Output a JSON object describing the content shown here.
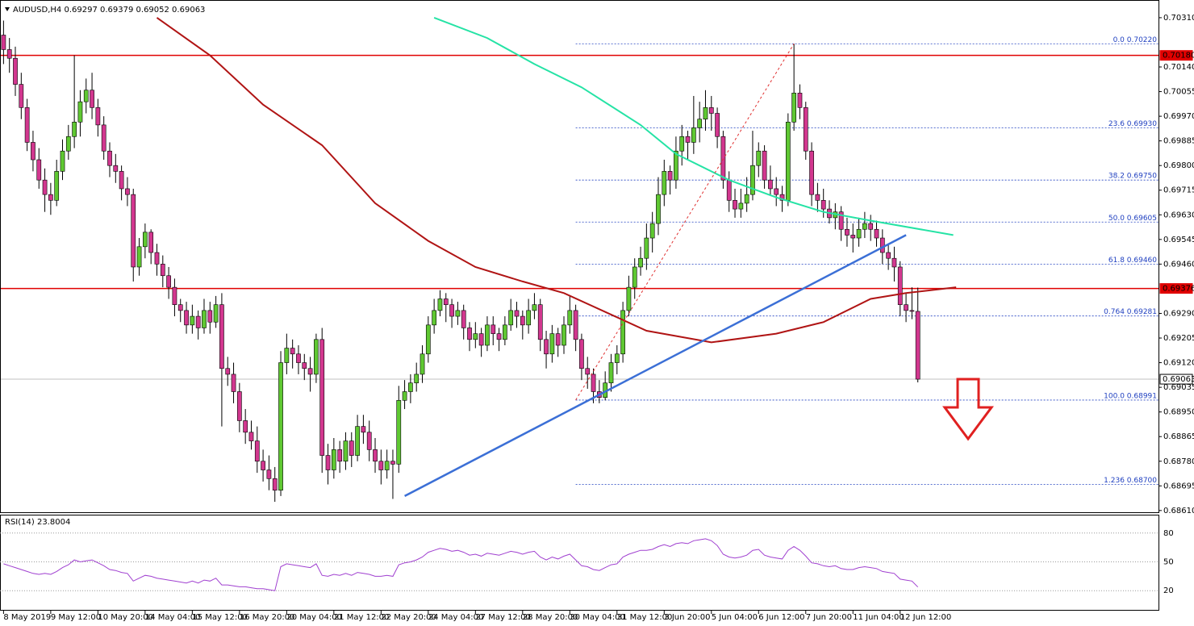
{
  "chart_data": [
    {
      "type": "candlestick",
      "title": "AUDUSD,H4 0.69297 0.69379 0.69052 0.69063",
      "up_color": "#5fc832",
      "down_color": "#d2378f",
      "xlim": [
        -0.6,
        195.8
      ],
      "ylim": [
        0.68604,
        0.70371
      ],
      "yticks": [
        {
          "value": 0.7031,
          "label": "0.70310"
        },
        {
          "value": 0.7014,
          "label": "0.70140"
        },
        {
          "value": 0.70055,
          "label": "0.70055"
        },
        {
          "value": 0.6997,
          "label": "0.69970"
        },
        {
          "value": 0.69885,
          "label": "0.69885"
        },
        {
          "value": 0.698,
          "label": "0.69800"
        },
        {
          "value": 0.69715,
          "label": "0.69715"
        },
        {
          "value": 0.6963,
          "label": "0.69630"
        },
        {
          "value": 0.69545,
          "label": "0.69545"
        },
        {
          "value": 0.6946,
          "label": "0.69460"
        },
        {
          "value": 0.6929,
          "label": "0.69290"
        },
        {
          "value": 0.69205,
          "label": "0.69205"
        },
        {
          "value": 0.6912,
          "label": "0.69120"
        },
        {
          "value": 0.69035,
          "label": "0.69035"
        },
        {
          "value": 0.6895,
          "label": "0.68950"
        },
        {
          "value": 0.68865,
          "label": "0.68865"
        },
        {
          "value": 0.6878,
          "label": "0.68780"
        },
        {
          "value": 0.68695,
          "label": "0.68695"
        },
        {
          "value": 0.6861,
          "label": "0.68610"
        }
      ],
      "xticks": [
        {
          "value": 0,
          "label": "8 May 2019"
        },
        {
          "value": 8,
          "label": "9 May 12:00"
        },
        {
          "value": 16,
          "label": "10 May 20:00"
        },
        {
          "value": 24,
          "label": "14 May 04:00"
        },
        {
          "value": 32,
          "label": "15 May 12:00"
        },
        {
          "value": 40,
          "label": "16 May 20:00"
        },
        {
          "value": 48,
          "label": "20 May 04:00"
        },
        {
          "value": 56,
          "label": "21 May 12:00"
        },
        {
          "value": 64,
          "label": "22 May 20:00"
        },
        {
          "value": 72,
          "label": "24 May 04:00"
        },
        {
          "value": 80,
          "label": "27 May 12:00"
        },
        {
          "value": 88,
          "label": "28 May 20:00"
        },
        {
          "value": 96,
          "label": "30 May 04:00"
        },
        {
          "value": 104,
          "label": "31 May 12:00"
        },
        {
          "value": 112,
          "label": "3 Jun 20:00"
        },
        {
          "value": 120,
          "label": "5 Jun 04:00"
        },
        {
          "value": 128,
          "label": "6 Jun 12:00"
        },
        {
          "value": 136,
          "label": "7 Jun 20:00"
        },
        {
          "value": 144,
          "label": "11 Jun 04:00"
        },
        {
          "value": 152,
          "label": "12 Jun 12:00"
        }
      ],
      "open": [
        0.7025,
        0.702,
        0.7017,
        0.7008,
        0.7,
        0.6988,
        0.6982,
        0.6975,
        0.697,
        0.6968,
        0.6978,
        0.6985,
        0.699,
        0.6995,
        0.7002,
        0.7006,
        0.7,
        0.6994,
        0.6985,
        0.698,
        0.6978,
        0.6972,
        0.697,
        0.6945,
        0.6952,
        0.6957,
        0.695,
        0.6946,
        0.6942,
        0.6938,
        0.6932,
        0.693,
        0.6925,
        0.6928,
        0.6924,
        0.693,
        0.6926,
        0.6932,
        0.691,
        0.6908,
        0.6902,
        0.6892,
        0.6888,
        0.6885,
        0.6878,
        0.6875,
        0.6872,
        0.6868,
        0.6912,
        0.6917,
        0.6915,
        0.6912,
        0.691,
        0.6908,
        0.692,
        0.688,
        0.6875,
        0.6882,
        0.6878,
        0.6885,
        0.688,
        0.689,
        0.6888,
        0.6882,
        0.6878,
        0.6875,
        0.6878,
        0.6877,
        0.6899,
        0.6902,
        0.6905,
        0.6908,
        0.6915,
        0.6925,
        0.693,
        0.6934,
        0.6932,
        0.6928,
        0.693,
        0.6924,
        0.692,
        0.6922,
        0.6918,
        0.6925,
        0.6922,
        0.692,
        0.6925,
        0.693,
        0.6928,
        0.6925,
        0.693,
        0.6932,
        0.692,
        0.6915,
        0.6922,
        0.6918,
        0.6925,
        0.693,
        0.692,
        0.691,
        0.6908,
        0.6902,
        0.69,
        0.6905,
        0.6912,
        0.6915,
        0.693,
        0.6938,
        0.6945,
        0.6948,
        0.6955,
        0.696,
        0.697,
        0.6978,
        0.6975,
        0.6985,
        0.699,
        0.6988,
        0.6993,
        0.6996,
        0.7,
        0.6998,
        0.699,
        0.6975,
        0.6968,
        0.6965,
        0.6967,
        0.697,
        0.698,
        0.6985,
        0.6975,
        0.6972,
        0.697,
        0.6968,
        0.6995,
        0.7005,
        0.7,
        0.6985,
        0.697,
        0.6968,
        0.6965,
        0.6962,
        0.6964,
        0.6958,
        0.6956,
        0.6955,
        0.6958,
        0.696,
        0.6958,
        0.6955,
        0.695,
        0.6948,
        0.6945,
        0.6932,
        0.693,
        0.69297
      ],
      "high": [
        0.703,
        0.7024,
        0.7021,
        0.7012,
        0.7003,
        0.6992,
        0.6986,
        0.6979,
        0.6974,
        0.6982,
        0.6989,
        0.6994,
        0.7018,
        0.7006,
        0.701,
        0.7012,
        0.7003,
        0.6997,
        0.6988,
        0.6984,
        0.698,
        0.6976,
        0.6972,
        0.6955,
        0.696,
        0.6958,
        0.6953,
        0.6949,
        0.6945,
        0.6941,
        0.6934,
        0.6933,
        0.6932,
        0.693,
        0.6934,
        0.6933,
        0.6935,
        0.6936,
        0.6914,
        0.6912,
        0.6905,
        0.6896,
        0.6892,
        0.689,
        0.6882,
        0.688,
        0.6876,
        0.6916,
        0.6922,
        0.692,
        0.6918,
        0.6915,
        0.6914,
        0.6922,
        0.6924,
        0.6884,
        0.6886,
        0.6885,
        0.6888,
        0.6888,
        0.6894,
        0.6894,
        0.6892,
        0.6886,
        0.6882,
        0.6882,
        0.6882,
        0.6904,
        0.6906,
        0.6908,
        0.6912,
        0.6918,
        0.6928,
        0.6934,
        0.6937,
        0.6936,
        0.6934,
        0.6933,
        0.6932,
        0.6926,
        0.6926,
        0.6924,
        0.6928,
        0.6928,
        0.6924,
        0.6928,
        0.6934,
        0.6933,
        0.693,
        0.6934,
        0.6936,
        0.6934,
        0.6923,
        0.6925,
        0.6924,
        0.6928,
        0.6935,
        0.6932,
        0.6922,
        0.6914,
        0.691,
        0.6906,
        0.6909,
        0.6915,
        0.6918,
        0.6933,
        0.6942,
        0.6948,
        0.6952,
        0.696,
        0.6964,
        0.6976,
        0.6982,
        0.698,
        0.699,
        0.6994,
        0.6992,
        0.7004,
        0.7002,
        0.7006,
        0.7004,
        0.7,
        0.6992,
        0.6978,
        0.6972,
        0.6972,
        0.6976,
        0.6992,
        0.6988,
        0.6987,
        0.698,
        0.6976,
        0.6973,
        0.6998,
        0.7022,
        0.7008,
        0.7002,
        0.6988,
        0.6974,
        0.6972,
        0.6968,
        0.6967,
        0.6966,
        0.6962,
        0.696,
        0.6962,
        0.6964,
        0.6963,
        0.6961,
        0.6958,
        0.6953,
        0.6952,
        0.6947,
        0.6936,
        0.6938,
        0.69379
      ],
      "low": [
        0.7015,
        0.7012,
        0.7004,
        0.6996,
        0.6985,
        0.6978,
        0.6972,
        0.6964,
        0.6963,
        0.6966,
        0.6975,
        0.6982,
        0.6986,
        0.699,
        0.6998,
        0.6996,
        0.699,
        0.6982,
        0.6976,
        0.6974,
        0.6968,
        0.6966,
        0.694,
        0.6942,
        0.6948,
        0.6946,
        0.6942,
        0.6938,
        0.6934,
        0.6928,
        0.6926,
        0.6922,
        0.6922,
        0.692,
        0.6922,
        0.6922,
        0.6924,
        0.689,
        0.6904,
        0.6898,
        0.6888,
        0.6884,
        0.6882,
        0.6874,
        0.6871,
        0.6868,
        0.6864,
        0.6866,
        0.6908,
        0.691,
        0.6908,
        0.6906,
        0.6902,
        0.6905,
        0.6874,
        0.687,
        0.6872,
        0.6874,
        0.6875,
        0.6876,
        0.6878,
        0.6884,
        0.6878,
        0.6874,
        0.687,
        0.6872,
        0.6865,
        0.6874,
        0.6896,
        0.6898,
        0.6902,
        0.6905,
        0.6912,
        0.6922,
        0.6928,
        0.6926,
        0.6924,
        0.6925,
        0.692,
        0.6916,
        0.6917,
        0.6914,
        0.6916,
        0.6918,
        0.6916,
        0.6918,
        0.6923,
        0.6924,
        0.692,
        0.6922,
        0.6927,
        0.6916,
        0.691,
        0.6912,
        0.6914,
        0.6915,
        0.6922,
        0.6916,
        0.6906,
        0.6903,
        0.6898,
        0.6898,
        0.6899,
        0.6902,
        0.6908,
        0.6912,
        0.6928,
        0.6934,
        0.6942,
        0.6944,
        0.695,
        0.6956,
        0.6966,
        0.697,
        0.6972,
        0.698,
        0.6982,
        0.6984,
        0.6988,
        0.6992,
        0.6992,
        0.6986,
        0.6972,
        0.6964,
        0.6962,
        0.6962,
        0.6964,
        0.6968,
        0.6976,
        0.6972,
        0.697,
        0.6966,
        0.6964,
        0.6966,
        0.6992,
        0.6996,
        0.6982,
        0.6966,
        0.6964,
        0.6962,
        0.696,
        0.6958,
        0.6954,
        0.6952,
        0.695,
        0.6952,
        0.6955,
        0.6954,
        0.6952,
        0.6946,
        0.6944,
        0.694,
        0.6928,
        0.6926,
        0.6927,
        0.69052
      ],
      "close": [
        0.702,
        0.7017,
        0.7008,
        0.7,
        0.6988,
        0.6982,
        0.6975,
        0.697,
        0.6968,
        0.6978,
        0.6985,
        0.699,
        0.6995,
        0.7002,
        0.7006,
        0.7,
        0.6994,
        0.6985,
        0.698,
        0.6978,
        0.6972,
        0.697,
        0.6945,
        0.6952,
        0.6957,
        0.695,
        0.6946,
        0.6942,
        0.6938,
        0.6932,
        0.693,
        0.6925,
        0.6928,
        0.6924,
        0.693,
        0.6926,
        0.6932,
        0.691,
        0.6908,
        0.6902,
        0.6892,
        0.6888,
        0.6885,
        0.6878,
        0.6875,
        0.6872,
        0.6868,
        0.6912,
        0.6917,
        0.6915,
        0.6912,
        0.691,
        0.6908,
        0.692,
        0.688,
        0.6875,
        0.6882,
        0.6878,
        0.6885,
        0.688,
        0.689,
        0.6888,
        0.6882,
        0.6878,
        0.6875,
        0.6878,
        0.6877,
        0.6899,
        0.6902,
        0.6905,
        0.6908,
        0.6915,
        0.6925,
        0.693,
        0.6934,
        0.6932,
        0.6928,
        0.693,
        0.6924,
        0.692,
        0.6922,
        0.6918,
        0.6925,
        0.6922,
        0.692,
        0.6925,
        0.693,
        0.6928,
        0.6925,
        0.693,
        0.6932,
        0.692,
        0.6915,
        0.6922,
        0.6918,
        0.6925,
        0.693,
        0.692,
        0.691,
        0.6908,
        0.6902,
        0.69,
        0.6905,
        0.6912,
        0.6915,
        0.693,
        0.6938,
        0.6945,
        0.6948,
        0.6955,
        0.696,
        0.697,
        0.6978,
        0.6975,
        0.6985,
        0.699,
        0.6988,
        0.6993,
        0.6996,
        0.7,
        0.6998,
        0.699,
        0.6975,
        0.6968,
        0.6965,
        0.6967,
        0.697,
        0.698,
        0.6985,
        0.6975,
        0.6972,
        0.697,
        0.6968,
        0.6995,
        0.7005,
        0.7,
        0.6985,
        0.697,
        0.6968,
        0.6965,
        0.6962,
        0.6964,
        0.6958,
        0.6956,
        0.6955,
        0.6958,
        0.696,
        0.6958,
        0.6955,
        0.695,
        0.6948,
        0.6945,
        0.6932,
        0.693,
        0.69297,
        0.69063
      ],
      "levels": [
        {
          "value": 0.7018,
          "label": "0.70180",
          "color": "#e00000"
        },
        {
          "value": 0.69376,
          "label": "0.69376",
          "color": "#e00000"
        },
        {
          "value": 0.69063,
          "label": "0.69063",
          "color": "#c0c0c0"
        }
      ],
      "fibonacci": {
        "x_start": 97,
        "color": "#2040c0",
        "levels": [
          {
            "value": 0.7022,
            "label": "0.0 0.70220"
          },
          {
            "value": 0.6993,
            "label": "23.6 0.69930"
          },
          {
            "value": 0.6975,
            "label": "38.2 0.69750"
          },
          {
            "value": 0.69605,
            "label": "50.0 0.69605"
          },
          {
            "value": 0.6946,
            "label": "61.8 0.69460"
          },
          {
            "value": 0.69281,
            "label": "0.764 0.69281"
          },
          {
            "value": 0.68991,
            "label": "100.0 0.68991"
          },
          {
            "value": 0.687,
            "label": "1.236 0.68700"
          }
        ]
      },
      "overlays": [
        {
          "color": "#b01414",
          "width": 2,
          "x": [
            26,
            35,
            44,
            54,
            63,
            72,
            80,
            88,
            95,
            109,
            120,
            131,
            139,
            147,
            153,
            161.5
          ],
          "values": [
            0.7031,
            0.7018,
            0.7001,
            0.6987,
            0.6967,
            0.6954,
            0.6945,
            0.694,
            0.6936,
            0.6923,
            0.6919,
            0.6922,
            0.6926,
            0.6934,
            0.6936,
            0.6938
          ]
        },
        {
          "color": "#25e3a5",
          "width": 2,
          "x": [
            73,
            82,
            90,
            98,
            108,
            114,
            123,
            131,
            139,
            147,
            161
          ],
          "values": [
            0.7031,
            0.7024,
            0.7015,
            0.7007,
            0.6994,
            0.6984,
            0.6975,
            0.6969,
            0.6964,
            0.6961,
            0.6956
          ]
        },
        {
          "color": "#3b6fd6",
          "width": 2.5,
          "x": [
            68,
            153
          ],
          "values": [
            0.6866,
            0.6956
          ]
        },
        {
          "color": "#e03030",
          "width": 1,
          "dash": "3,3",
          "x": [
            97,
            134
          ],
          "values": [
            0.68991,
            0.7022
          ]
        }
      ]
    },
    {
      "type": "line",
      "title": "RSI(14) 23.8004",
      "color": "#a040d0",
      "ylim": [
        0,
        100
      ],
      "yticks": [
        80,
        50,
        20
      ],
      "values": [
        48,
        46,
        44,
        42,
        40,
        38,
        37,
        38,
        37,
        40,
        44,
        47,
        52,
        50,
        51,
        52,
        49,
        46,
        42,
        41,
        39,
        38,
        30,
        33,
        36,
        35,
        33,
        32,
        31,
        30,
        29,
        28,
        30,
        28,
        31,
        30,
        33,
        26,
        26,
        25,
        24,
        24,
        23,
        22,
        22,
        21,
        20,
        45,
        48,
        47,
        46,
        45,
        44,
        48,
        36,
        35,
        37,
        36,
        38,
        36,
        39,
        38,
        37,
        35,
        35,
        36,
        35,
        47,
        49,
        50,
        52,
        55,
        60,
        62,
        64,
        63,
        61,
        62,
        60,
        57,
        58,
        56,
        59,
        58,
        57,
        59,
        61,
        60,
        58,
        60,
        61,
        55,
        52,
        55,
        53,
        56,
        58,
        52,
        46,
        45,
        42,
        41,
        44,
        47,
        48,
        55,
        58,
        60,
        62,
        62,
        63,
        66,
        68,
        66,
        69,
        70,
        69,
        72,
        73,
        74,
        72,
        67,
        58,
        55,
        54,
        55,
        57,
        62,
        63,
        57,
        55,
        54,
        53,
        62,
        66,
        62,
        56,
        49,
        48,
        46,
        45,
        46,
        43,
        42,
        42,
        44,
        45,
        44,
        43,
        40,
        39,
        38,
        32,
        31,
        30,
        23.8
      ]
    }
  ]
}
